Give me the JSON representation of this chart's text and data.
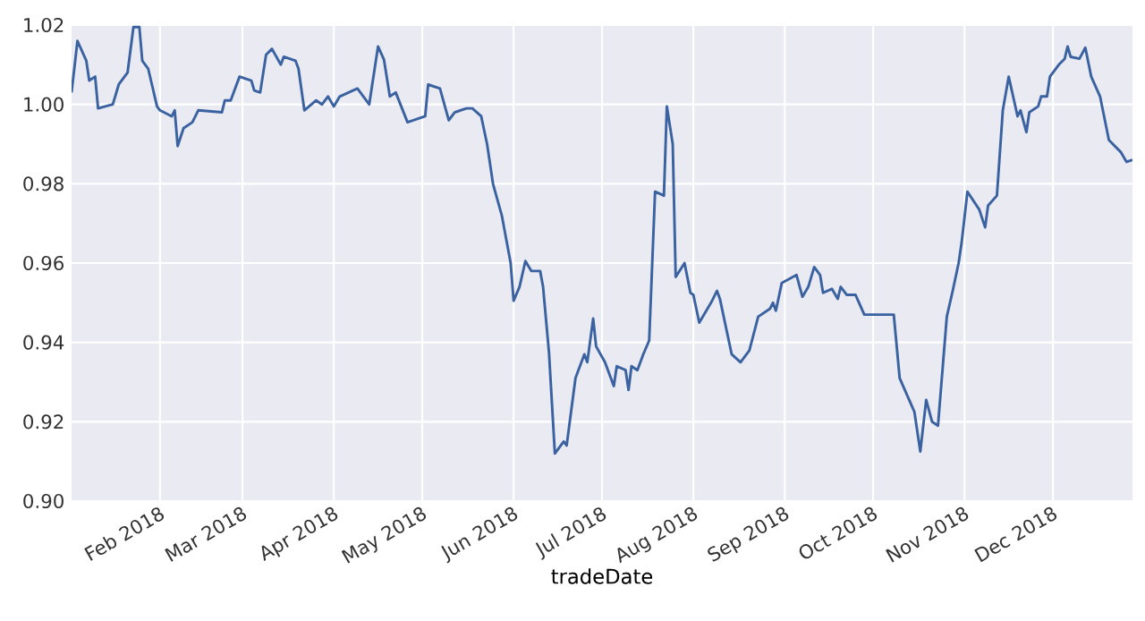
{
  "chart_data": {
    "type": "line",
    "xlabel": "tradeDate",
    "xlim": [
      "2018-01-02",
      "2018-12-28"
    ],
    "ylim": [
      0.9,
      1.02
    ],
    "xticks": [
      {
        "value": "2018-02-01",
        "label": "Feb 2018"
      },
      {
        "value": "2018-03-01",
        "label": "Mar 2018"
      },
      {
        "value": "2018-04-01",
        "label": "Apr 2018"
      },
      {
        "value": "2018-05-01",
        "label": "May 2018"
      },
      {
        "value": "2018-06-01",
        "label": "Jun 2018"
      },
      {
        "value": "2018-07-01",
        "label": "Jul 2018"
      },
      {
        "value": "2018-08-01",
        "label": "Aug 2018"
      },
      {
        "value": "2018-09-01",
        "label": "Sep 2018"
      },
      {
        "value": "2018-10-01",
        "label": "Oct 2018"
      },
      {
        "value": "2018-11-01",
        "label": "Nov 2018"
      },
      {
        "value": "2018-12-01",
        "label": "Dec 2018"
      }
    ],
    "yticks": [
      {
        "value": 0.9,
        "label": "0.90"
      },
      0.92,
      0.94,
      0.96,
      0.98,
      {
        "value": 1.0,
        "label": "1.00"
      },
      1.02
    ],
    "grid": true,
    "x": [
      "2018-01-02",
      "2018-01-04",
      "2018-01-07",
      "2018-01-08",
      "2018-01-10",
      "2018-01-11",
      "2018-01-16",
      "2018-01-18",
      "2018-01-21",
      "2018-01-23",
      "2018-01-25",
      "2018-01-26",
      "2018-01-28",
      "2018-01-31",
      "2018-02-01",
      "2018-02-05",
      "2018-02-06",
      "2018-02-07",
      "2018-02-09",
      "2018-02-12",
      "2018-02-14",
      "2018-02-22",
      "2018-02-23",
      "2018-02-25",
      "2018-02-28",
      "2018-03-04",
      "2018-03-05",
      "2018-03-07",
      "2018-03-09",
      "2018-03-11",
      "2018-03-14",
      "2018-03-15",
      "2018-03-19",
      "2018-03-20",
      "2018-03-22",
      "2018-03-26",
      "2018-03-28",
      "2018-03-30",
      "2018-04-01",
      "2018-04-03",
      "2018-04-09",
      "2018-04-13",
      "2018-04-16",
      "2018-04-18",
      "2018-04-20",
      "2018-04-22",
      "2018-04-26",
      "2018-05-02",
      "2018-05-03",
      "2018-05-07",
      "2018-05-10",
      "2018-05-12",
      "2018-05-16",
      "2018-05-18",
      "2018-05-21",
      "2018-05-23",
      "2018-05-25",
      "2018-05-28",
      "2018-05-31",
      "2018-06-01",
      "2018-06-03",
      "2018-06-05",
      "2018-06-07",
      "2018-06-10",
      "2018-06-11",
      "2018-06-13",
      "2018-06-15",
      "2018-06-18",
      "2018-06-19",
      "2018-06-22",
      "2018-06-25",
      "2018-06-26",
      "2018-06-28",
      "2018-06-29",
      "2018-07-02",
      "2018-07-05",
      "2018-07-06",
      "2018-07-09",
      "2018-07-10",
      "2018-07-11",
      "2018-07-13",
      "2018-07-15",
      "2018-07-17",
      "2018-07-19",
      "2018-07-22",
      "2018-07-23",
      "2018-07-25",
      "2018-07-26",
      "2018-07-29",
      "2018-07-31",
      "2018-08-01",
      "2018-08-03",
      "2018-08-07",
      "2018-08-09",
      "2018-08-10",
      "2018-08-14",
      "2018-08-17",
      "2018-08-20",
      "2018-08-23",
      "2018-08-27",
      "2018-08-28",
      "2018-08-29",
      "2018-08-31",
      "2018-09-05",
      "2018-09-07",
      "2018-09-09",
      "2018-09-11",
      "2018-09-13",
      "2018-09-14",
      "2018-09-17",
      "2018-09-19",
      "2018-09-20",
      "2018-09-22",
      "2018-09-25",
      "2018-09-28",
      "2018-10-08",
      "2018-10-10",
      "2018-10-15",
      "2018-10-17",
      "2018-10-19",
      "2018-10-21",
      "2018-10-23",
      "2018-10-26",
      "2018-10-28",
      "2018-10-30",
      "2018-10-31",
      "2018-11-02",
      "2018-11-06",
      "2018-11-08",
      "2018-11-09",
      "2018-11-12",
      "2018-11-14",
      "2018-11-16",
      "2018-11-19",
      "2018-11-20",
      "2018-11-22",
      "2018-11-23",
      "2018-11-26",
      "2018-11-27",
      "2018-11-29",
      "2018-11-30",
      "2018-12-03",
      "2018-12-05",
      "2018-12-06",
      "2018-12-07",
      "2018-12-10",
      "2018-12-12",
      "2018-12-14",
      "2018-12-17",
      "2018-12-20",
      "2018-12-24",
      "2018-12-26",
      "2018-12-28"
    ],
    "series": [
      {
        "color": "#3a62a0",
        "values": [
          1.003,
          1.016,
          1.011,
          1.006,
          1.007,
          0.999,
          1.0,
          1.005,
          1.008,
          1.0195,
          1.0195,
          1.011,
          1.009,
          0.9995,
          0.9985,
          0.997,
          0.9985,
          0.9895,
          0.994,
          0.9955,
          0.9985,
          0.998,
          1.001,
          1.001,
          1.007,
          1.006,
          1.0035,
          1.003,
          1.0125,
          1.014,
          1.01,
          1.012,
          1.011,
          1.009,
          0.9985,
          1.001,
          1.0,
          1.002,
          0.9995,
          1.002,
          1.004,
          1.0,
          1.0146,
          1.0113,
          1.002,
          1.003,
          0.9955,
          0.997,
          1.005,
          1.004,
          0.996,
          0.998,
          0.999,
          0.999,
          0.997,
          0.99,
          0.98,
          0.972,
          0.96,
          0.9505,
          0.954,
          0.9605,
          0.958,
          0.958,
          0.954,
          0.9375,
          0.912,
          0.915,
          0.914,
          0.931,
          0.937,
          0.935,
          0.946,
          0.939,
          0.935,
          0.929,
          0.934,
          0.933,
          0.928,
          0.934,
          0.933,
          0.937,
          0.9405,
          0.978,
          0.977,
          0.9995,
          0.99,
          0.9565,
          0.96,
          0.9525,
          0.952,
          0.945,
          0.95,
          0.953,
          0.951,
          0.937,
          0.935,
          0.938,
          0.9465,
          0.9485,
          0.95,
          0.948,
          0.955,
          0.957,
          0.9515,
          0.954,
          0.959,
          0.957,
          0.9525,
          0.9535,
          0.951,
          0.954,
          0.952,
          0.952,
          0.947,
          0.947,
          0.931,
          0.9225,
          0.9125,
          0.9255,
          0.92,
          0.919,
          0.9465,
          0.953,
          0.96,
          0.965,
          0.978,
          0.9735,
          0.969,
          0.9745,
          0.977,
          0.9985,
          1.007,
          0.997,
          0.9985,
          0.993,
          0.998,
          0.9995,
          1.002,
          1.002,
          1.007,
          1.01,
          1.0115,
          1.0146,
          1.012,
          1.0115,
          1.0143,
          1.007,
          1.002,
          0.991,
          0.988,
          0.9855,
          0.986
        ]
      }
    ]
  }
}
